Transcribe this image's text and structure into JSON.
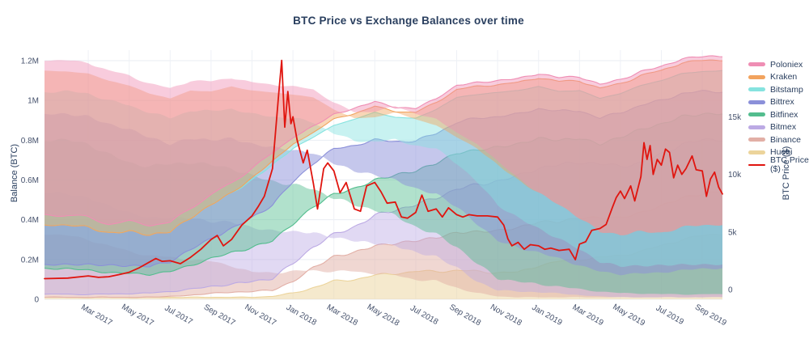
{
  "chart_data": {
    "type": "area",
    "stacked": true,
    "title": "BTC Price vs Exchange Balances over time",
    "legend_position": "right",
    "grid": true,
    "left_axis": {
      "label": "Balance (BTC)",
      "units": "BTC",
      "tick_labels": [
        "0",
        "0.2M",
        "0.4M",
        "0.6M",
        "0.8M",
        "1M",
        "1.2M"
      ],
      "tick_values_m": [
        0,
        0.2,
        0.4,
        0.6,
        0.8,
        1.0,
        1.2
      ],
      "range_m": [
        0,
        1.25
      ]
    },
    "right_axis": {
      "label": "BTC Price ($)",
      "units": "USD",
      "tick_labels": [
        "0",
        "5k",
        "10k",
        "15k"
      ],
      "tick_values_usd": [
        0,
        5000,
        10000,
        15000
      ],
      "range_usd": [
        0,
        20800
      ]
    },
    "x_axis": {
      "months": [
        "Jan 2017",
        "Feb 2017",
        "Mar 2017",
        "Apr 2017",
        "May 2017",
        "Jun 2017",
        "Jul 2017",
        "Aug 2017",
        "Sep 2017",
        "Oct 2017",
        "Nov 2017",
        "Dec 2017",
        "Jan 2018",
        "Feb 2018",
        "Mar 2018",
        "Apr 2018",
        "May 2018",
        "Jun 2018",
        "Jul 2018",
        "Aug 2018",
        "Sep 2018",
        "Oct 2018",
        "Nov 2018",
        "Dec 2018",
        "Jan 2019",
        "Feb 2019",
        "Mar 2019",
        "Apr 2019",
        "May 2019",
        "Jun 2019",
        "Jul 2019",
        "Aug 2019",
        "Sep 2019",
        "Oct 2019"
      ],
      "tick_indices": [
        2,
        4,
        6,
        8,
        10,
        12,
        14,
        16,
        18,
        20,
        22,
        24,
        26,
        28,
        30,
        32
      ],
      "tick_labels": [
        "Mar 2017",
        "May 2017",
        "Jul 2017",
        "Sep 2017",
        "Nov 2017",
        "Jan 2018",
        "Mar 2018",
        "May 2018",
        "Jul 2018",
        "Sep 2018",
        "Nov 2018",
        "Jan 2019",
        "Mar 2019",
        "May 2019",
        "Jul 2019",
        "Sep 2019"
      ]
    },
    "series_note": "values in millions of BTC, monthly Jan 2017 - Oct 2019; listed in legend order (top of stack first); stacking bottom-to-top is the reverse of this list",
    "series": [
      {
        "name": "Poloniex",
        "color": "#ef8eb4",
        "fill": "rgba(239,142,180,0.45)",
        "values": [
          0.05,
          0.05,
          0.05,
          0.045,
          0.05,
          0.05,
          0.045,
          0.05,
          0.05,
          0.05,
          0.05,
          0.04,
          0.035,
          0.03,
          0.025,
          0.025,
          0.025,
          0.02,
          0.02,
          0.02,
          0.02,
          0.02,
          0.02,
          0.02,
          0.02,
          0.02,
          0.02,
          0.02,
          0.02,
          0.02,
          0.02,
          0.02,
          0.02,
          0.02
        ]
      },
      {
        "name": "Kraken",
        "color": "#f2a35e",
        "fill": "rgba(242,163,94,0.45)",
        "values": [
          0,
          0,
          0,
          0,
          0,
          0,
          0,
          0,
          0,
          0,
          0.01,
          0.02,
          0.02,
          0.025,
          0.03,
          0.03,
          0.03,
          0.03,
          0.03,
          0.035,
          0.04,
          0.04,
          0.04,
          0.04,
          0.045,
          0.05,
          0.05,
          0.05,
          0.05,
          0.05,
          0.05,
          0.055,
          0.055,
          0.055
        ]
      },
      {
        "name": "Bitstamp",
        "color": "#86e3df",
        "fill": "rgba(134,227,223,0.45)",
        "values": [
          0.2,
          0.2,
          0.185,
          0.165,
          0.17,
          0.16,
          0.15,
          0.16,
          0.17,
          0.18,
          0.19,
          0.2,
          0.17,
          0.13,
          0.12,
          0.13,
          0.14,
          0.12,
          0.115,
          0.12,
          0.125,
          0.12,
          0.12,
          0.12,
          0.11,
          0.1,
          0.1,
          0.1,
          0.095,
          0.1,
          0.1,
          0.1,
          0.1,
          0.105
        ]
      },
      {
        "name": "Bittrex",
        "color": "#8b90d9",
        "fill": "rgba(139,144,217,0.5)",
        "values": [
          0.02,
          0.02,
          0.03,
          0.035,
          0.04,
          0.04,
          0.05,
          0.08,
          0.1,
          0.12,
          0.15,
          0.18,
          0.21,
          0.22,
          0.225,
          0.22,
          0.2,
          0.17,
          0.15,
          0.15,
          0.155,
          0.16,
          0.155,
          0.15,
          0.15,
          0.145,
          0.14,
          0.13,
          0.125,
          0.12,
          0.12,
          0.115,
          0.115,
          0.11
        ]
      },
      {
        "name": "Bitfinex",
        "color": "#53bd8e",
        "fill": "rgba(83,189,142,0.45)",
        "values": [
          0.13,
          0.13,
          0.12,
          0.11,
          0.1,
          0.095,
          0.1,
          0.12,
          0.14,
          0.16,
          0.17,
          0.19,
          0.2,
          0.2,
          0.205,
          0.19,
          0.18,
          0.175,
          0.17,
          0.175,
          0.18,
          0.175,
          0.17,
          0.16,
          0.15,
          0.125,
          0.12,
          0.1,
          0.145,
          0.17,
          0.15,
          0.14,
          0.13,
          0.13
        ]
      },
      {
        "name": "Bitmex",
        "color": "#bcaae4",
        "fill": "rgba(188,170,228,0.45)",
        "values": [
          0.015,
          0.015,
          0.015,
          0.015,
          0.02,
          0.02,
          0.025,
          0.03,
          0.035,
          0.04,
          0.05,
          0.06,
          0.09,
          0.105,
          0.11,
          0.13,
          0.15,
          0.17,
          0.18,
          0.2,
          0.22,
          0.235,
          0.25,
          0.26,
          0.27,
          0.285,
          0.28,
          0.27,
          0.26,
          0.25,
          0.26,
          0.27,
          0.27,
          0.265
        ]
      },
      {
        "name": "Binance",
        "color": "#e2afa6",
        "fill": "rgba(226,175,166,0.5)",
        "values": [
          0,
          0,
          0,
          0,
          0,
          0,
          0.005,
          0.01,
          0.02,
          0.025,
          0.03,
          0.03,
          0.06,
          0.1,
          0.125,
          0.135,
          0.15,
          0.15,
          0.155,
          0.17,
          0.19,
          0.2,
          0.21,
          0.225,
          0.22,
          0.2,
          0.21,
          0.2,
          0.19,
          0.195,
          0.2,
          0.21,
          0.21,
          0.21
        ]
      },
      {
        "name": "Huobi",
        "color": "#ecd49b",
        "fill": "rgba(236,212,155,0.5)",
        "values": [
          0.01,
          0.01,
          0.01,
          0.01,
          0.01,
          0.01,
          0.01,
          0.01,
          0.01,
          0.01,
          0.01,
          0.015,
          0.03,
          0.06,
          0.09,
          0.1,
          0.12,
          0.13,
          0.14,
          0.14,
          0.145,
          0.14,
          0.135,
          0.135,
          0.17,
          0.19,
          0.2,
          0.21,
          0.22,
          0.24,
          0.27,
          0.3,
          0.32,
          0.33
        ]
      }
    ],
    "btc_price": {
      "name": "BTC Price ($)",
      "color": "#e0150f",
      "points_note": "[month_index from Jan 2017, price USD]",
      "points": [
        [
          0,
          950
        ],
        [
          1,
          1000
        ],
        [
          2,
          1190
        ],
        [
          2.5,
          1060
        ],
        [
          3,
          1120
        ],
        [
          3.5,
          1300
        ],
        [
          4,
          1500
        ],
        [
          4.5,
          1900
        ],
        [
          5,
          2400
        ],
        [
          5.3,
          2700
        ],
        [
          5.6,
          2450
        ],
        [
          6,
          2500
        ],
        [
          6.5,
          2250
        ],
        [
          7,
          2800
        ],
        [
          7.5,
          3500
        ],
        [
          8,
          4350
        ],
        [
          8.3,
          4700
        ],
        [
          8.6,
          3800
        ],
        [
          9,
          4350
        ],
        [
          9.5,
          5600
        ],
        [
          10,
          6400
        ],
        [
          10.3,
          7200
        ],
        [
          10.6,
          8100
        ],
        [
          11,
          10500
        ],
        [
          11.3,
          16900
        ],
        [
          11.45,
          19900
        ],
        [
          11.6,
          14100
        ],
        [
          11.75,
          17200
        ],
        [
          11.9,
          14400
        ],
        [
          12,
          15000
        ],
        [
          12.2,
          13000
        ],
        [
          12.5,
          11000
        ],
        [
          12.7,
          12100
        ],
        [
          13,
          9200
        ],
        [
          13.2,
          7000
        ],
        [
          13.5,
          10500
        ],
        [
          13.7,
          11000
        ],
        [
          14,
          10300
        ],
        [
          14.3,
          8400
        ],
        [
          14.6,
          9300
        ],
        [
          15,
          7000
        ],
        [
          15.3,
          6800
        ],
        [
          15.6,
          9000
        ],
        [
          16,
          9300
        ],
        [
          16.3,
          8500
        ],
        [
          16.6,
          7500
        ],
        [
          17,
          7600
        ],
        [
          17.3,
          6300
        ],
        [
          17.6,
          6200
        ],
        [
          18,
          6700
        ],
        [
          18.3,
          8200
        ],
        [
          18.6,
          6800
        ],
        [
          19,
          7000
        ],
        [
          19.3,
          6300
        ],
        [
          19.6,
          7100
        ],
        [
          20,
          6500
        ],
        [
          20.3,
          6300
        ],
        [
          20.6,
          6500
        ],
        [
          21,
          6400
        ],
        [
          21.5,
          6400
        ],
        [
          22,
          6300
        ],
        [
          22.3,
          5600
        ],
        [
          22.5,
          4400
        ],
        [
          22.7,
          3800
        ],
        [
          23,
          4100
        ],
        [
          23.3,
          3500
        ],
        [
          23.6,
          3900
        ],
        [
          24,
          3800
        ],
        [
          24.3,
          3500
        ],
        [
          24.6,
          3600
        ],
        [
          25,
          3400
        ],
        [
          25.5,
          3500
        ],
        [
          25.8,
          2600
        ],
        [
          26,
          3950
        ],
        [
          26.3,
          4150
        ],
        [
          26.6,
          5150
        ],
        [
          27,
          5300
        ],
        [
          27.3,
          5650
        ],
        [
          27.6,
          7100
        ],
        [
          27.8,
          8000
        ],
        [
          28,
          8550
        ],
        [
          28.2,
          7900
        ],
        [
          28.5,
          9000
        ],
        [
          28.7,
          7700
        ],
        [
          29,
          9800
        ],
        [
          29.15,
          12750
        ],
        [
          29.3,
          11300
        ],
        [
          29.45,
          12500
        ],
        [
          29.6,
          10000
        ],
        [
          29.8,
          11300
        ],
        [
          30,
          10800
        ],
        [
          30.2,
          12200
        ],
        [
          30.4,
          11900
        ],
        [
          30.6,
          9700
        ],
        [
          30.8,
          10800
        ],
        [
          31,
          10000
        ],
        [
          31.2,
          10500
        ],
        [
          31.5,
          11600
        ],
        [
          31.7,
          10400
        ],
        [
          32,
          10300
        ],
        [
          32.2,
          8100
        ],
        [
          32.4,
          9600
        ],
        [
          32.6,
          10200
        ],
        [
          32.8,
          8900
        ],
        [
          33,
          8300
        ]
      ]
    }
  }
}
